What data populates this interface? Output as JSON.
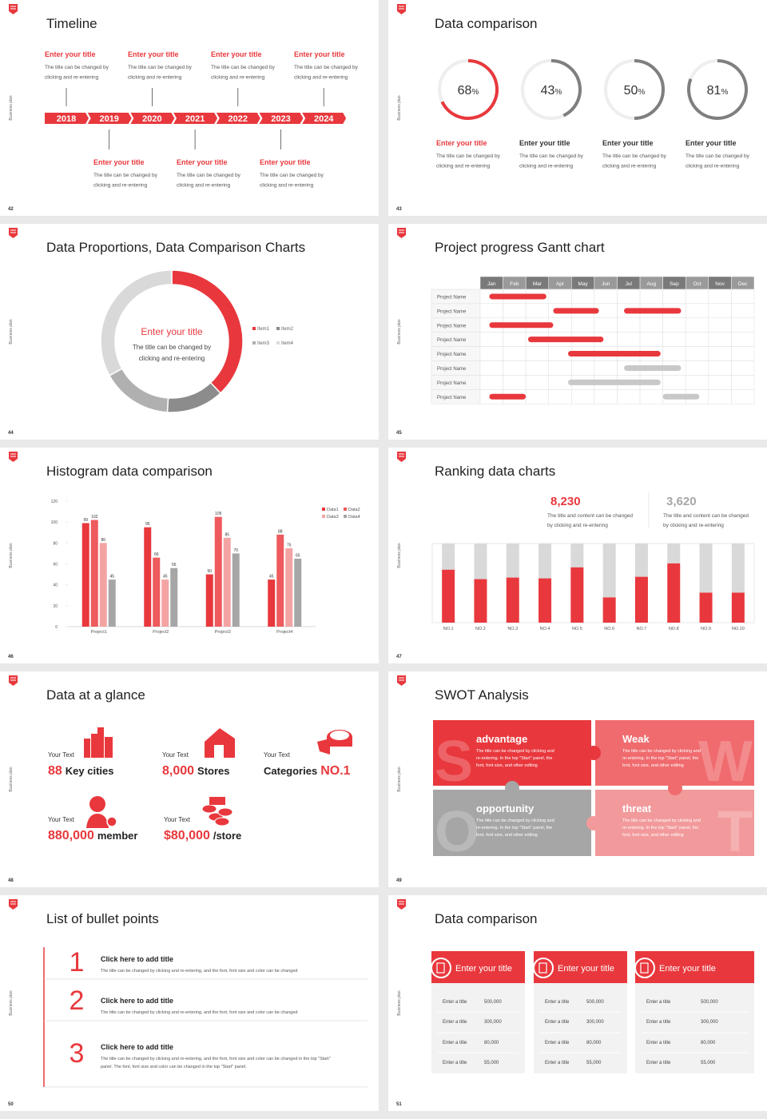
{
  "side_label": "Business plan",
  "slides": [
    {
      "number": "42",
      "title": "Timeline",
      "years": [
        "2018",
        "2019",
        "2020",
        "2021",
        "2022",
        "2023",
        "2024"
      ],
      "items": [
        {
          "title": "Enter your title",
          "text": [
            "The title can be changed by",
            "clicking and re-entering"
          ]
        },
        {
          "title": "Enter your title",
          "text": [
            "The title can be changed by",
            "clicking and re-entering"
          ]
        },
        {
          "title": "Enter your title",
          "text": [
            "The title can be changed by",
            "clicking and re-entering"
          ]
        },
        {
          "title": "Enter your title",
          "text": [
            "The title can be changed by",
            "clicking and re-entering"
          ]
        },
        {
          "title": "Enter your title",
          "text": [
            "The title can be changed by",
            "clicking and re-entering"
          ]
        },
        {
          "title": "Enter your title",
          "text": [
            "The title can be changed by",
            "clicking and re-entering"
          ]
        },
        {
          "title": "Enter your title",
          "text": [
            "The title can be changed by",
            "clicking and re-entering"
          ]
        }
      ]
    },
    {
      "number": "43",
      "title": "Data comparison",
      "unit": "%",
      "rings": [
        {
          "value": 68,
          "color": "#e8383d",
          "title_color": "#e8383d",
          "title": "Enter your title",
          "text": [
            "The title can be changed by",
            "clicking and re-entering"
          ]
        },
        {
          "value": 43,
          "color": "#7f7f7f",
          "title_color": "#333333",
          "title": "Enter your title",
          "text": [
            "The title can be changed by",
            "clicking and re-entering"
          ]
        },
        {
          "value": 50,
          "color": "#7f7f7f",
          "title_color": "#333333",
          "title": "Enter your title",
          "text": [
            "The title can be changed by",
            "clicking and re-entering"
          ]
        },
        {
          "value": 81,
          "color": "#7f7f7f",
          "title_color": "#333333",
          "title": "Enter your title",
          "text": [
            "The title can be changed by",
            "clicking and re-entering"
          ]
        }
      ]
    },
    {
      "number": "44",
      "title": "Data Proportions, Data Comparison Charts",
      "chart": {
        "type": "donut",
        "title": "Enter your title",
        "text": [
          "The title can be changed by",
          "clicking and re-entering"
        ],
        "categories": [
          "Item1",
          "Item2",
          "Item3",
          "Item4"
        ],
        "values": [
          38,
          13,
          16,
          33
        ],
        "colors": [
          "#e8383d",
          "#8c8c8c",
          "#b0b0b0",
          "#d9d9d9"
        ]
      }
    },
    {
      "number": "45",
      "title": "Project progress Gantt chart",
      "chart": {
        "type": "gantt",
        "categories": [
          "Jan",
          "Feb",
          "Mar",
          "Apr",
          "May",
          "Jun",
          "Jul",
          "Aug",
          "Sep",
          "Oct",
          "Nov",
          "Dec"
        ],
        "tasks": [
          {
            "name": "Project Name",
            "bars": [
              {
                "start": 0.4,
                "end": 2.9,
                "color": "#e8383d"
              }
            ]
          },
          {
            "name": "Project Name",
            "bars": [
              {
                "start": 3.2,
                "end": 5.2,
                "color": "#e8383d"
              },
              {
                "start": 6.3,
                "end": 8.8,
                "color": "#e8383d"
              }
            ]
          },
          {
            "name": "Project Name",
            "bars": [
              {
                "start": 0.4,
                "end": 3.2,
                "color": "#e8383d"
              }
            ]
          },
          {
            "name": "Project Name",
            "bars": [
              {
                "start": 2.1,
                "end": 5.4,
                "color": "#e8383d"
              }
            ]
          },
          {
            "name": "Project Name",
            "bars": [
              {
                "start": 3.85,
                "end": 7.9,
                "color": "#e8383d"
              }
            ]
          },
          {
            "name": "Project Name",
            "bars": [
              {
                "start": 6.3,
                "end": 8.8,
                "color": "#c8c8c8"
              }
            ]
          },
          {
            "name": "Project Name",
            "bars": [
              {
                "start": 3.85,
                "end": 7.9,
                "color": "#c8c8c8"
              }
            ]
          },
          {
            "name": "Project Name",
            "bars": [
              {
                "start": 0.4,
                "end": 2.0,
                "color": "#e8383d"
              },
              {
                "start": 8.0,
                "end": 9.6,
                "color": "#c8c8c8"
              }
            ]
          }
        ]
      }
    },
    {
      "number": "46",
      "title": "Histogram data comparison",
      "chart": {
        "type": "bar",
        "categories": [
          "Project1",
          "Project2",
          "Project3",
          "Project4"
        ],
        "ylim": [
          0,
          120
        ],
        "yticks": [
          0,
          20,
          40,
          60,
          80,
          100,
          120
        ],
        "series": [
          {
            "name": "Data1",
            "color": "#e8383d",
            "values": [
              99,
              95,
              50,
              45
            ]
          },
          {
            "name": "Data2",
            "color": "#ee5a5d",
            "values": [
              102,
              66,
              105,
              88
            ]
          },
          {
            "name": "Data3",
            "color": "#f4a3a3",
            "values": [
              80,
              45,
              85,
              75
            ]
          },
          {
            "name": "Data4",
            "color": "#a6a6a6",
            "values": [
              45,
              56,
              70,
              65
            ]
          }
        ]
      }
    },
    {
      "number": "47",
      "title": "Ranking data charts",
      "figures": [
        {
          "value": "8,230",
          "color": "#e8383d",
          "text": [
            "The title and content can be changed",
            "by clicking and re-entering"
          ]
        },
        {
          "value": "3,620",
          "color": "#a6a6a6",
          "text": [
            "The title and content can be changed",
            "by clicking and re-entering"
          ]
        }
      ],
      "chart": {
        "type": "stacked_bar",
        "categories": [
          "NO.1",
          "NO.2",
          "NO.3",
          "NO.4",
          "NO.5",
          "NO.6",
          "NO.7",
          "NO.8",
          "NO.9",
          "NO.10"
        ],
        "ylim": [
          0,
          100
        ],
        "series": [
          {
            "color": "#e8383d",
            "values": [
              67,
              55,
              57,
              56,
              70,
              32,
              58,
              75,
              38,
              38
            ]
          },
          {
            "color": "#d9d9d9",
            "values": [
              33,
              45,
              43,
              44,
              30,
              68,
              42,
              25,
              62,
              62
            ]
          }
        ]
      }
    },
    {
      "number": "48",
      "title": "Data at a glance",
      "items": [
        {
          "label": "Your Text",
          "parts": [
            {
              "text": "88",
              "accent": true
            },
            {
              "text": "Key cities",
              "accent": false
            }
          ]
        },
        {
          "label": "Your Text",
          "parts": [
            {
              "text": "8,000",
              "accent": true
            },
            {
              "text": "Stores",
              "accent": false
            }
          ]
        },
        {
          "label": "Your Text",
          "parts": [
            {
              "text": "Categories",
              "accent": false
            },
            {
              "text": "NO.1",
              "accent": true
            }
          ]
        },
        {
          "label": "Your Text",
          "parts": [
            {
              "text": "880,000",
              "accent": true
            },
            {
              "text": "member",
              "accent": false
            }
          ]
        },
        {
          "label": "Your Text",
          "parts": [
            {
              "text": "$80,000",
              "accent": true
            },
            {
              "text": "/store",
              "accent": false
            }
          ]
        }
      ]
    },
    {
      "number": "49",
      "title": "SWOT Analysis",
      "quadrants": [
        {
          "letter": "S",
          "title": "advantage",
          "color": "#e8383d",
          "text": [
            "The title can be changed by clicking and",
            "re-entering. In the top \"Start\" panel, the",
            "font, font size, and other editing"
          ]
        },
        {
          "letter": "W",
          "title": "Weak",
          "color": "#f06b6e",
          "text": [
            "The title can be changed by clicking and",
            "re-entering. In the top \"Start\" panel, the",
            "font, font size, and other editing"
          ]
        },
        {
          "letter": "O",
          "title": "opportunity",
          "color": "#a6a6a6",
          "text": [
            "The title can be changed by clicking and",
            "re-entering. In the top \"Start\" panel, the",
            "font, font size, and other editing"
          ]
        },
        {
          "letter": "T",
          "title": "threat",
          "color": "#f29a9b",
          "text": [
            "The title can be changed by clicking and",
            "re-entering. In the top \"Start\" panel, the",
            "font, font size, and other editing"
          ]
        }
      ]
    },
    {
      "number": "50",
      "title": "List of bullet points",
      "points": [
        {
          "number": "1",
          "title": "Click here to add title",
          "text": [
            "The title can be changed by clicking and re-entering, and the font, font size and color can be changed"
          ]
        },
        {
          "number": "2",
          "title": "Click here to add title",
          "text": [
            "The title can be changed by clicking and re-entering, and the font, font size and color can be changed"
          ]
        },
        {
          "number": "3",
          "title": "Click here to add title",
          "text": [
            "The title can be changed by clicking and re-entering, and the font, font size and color can be changed in the top \"Start\"",
            "panel. The font, font size and color can be changed in the top \"Start\" panel."
          ]
        }
      ]
    },
    {
      "number": "51",
      "title": "Data comparison",
      "cards": [
        {
          "title": "Enter your title",
          "rows": [
            {
              "label": "Enter a title",
              "value": "500,000"
            },
            {
              "label": "Enter a title",
              "value": "300,000"
            },
            {
              "label": "Enter a title",
              "value": "80,000"
            },
            {
              "label": "Enter a title",
              "value": "55,000"
            }
          ]
        },
        {
          "title": "Enter your title",
          "rows": [
            {
              "label": "Enter a title",
              "value": "500,000"
            },
            {
              "label": "Enter a title",
              "value": "300,000"
            },
            {
              "label": "Enter a title",
              "value": "80,000"
            },
            {
              "label": "Enter a title",
              "value": "55,000"
            }
          ]
        },
        {
          "title": "Enter your title",
          "rows": [
            {
              "label": "Enter a title",
              "value": "500,000"
            },
            {
              "label": "Enter a title",
              "value": "300,000"
            },
            {
              "label": "Enter a title",
              "value": "80,000"
            },
            {
              "label": "Enter a title",
              "value": "55,000"
            }
          ]
        }
      ]
    }
  ]
}
